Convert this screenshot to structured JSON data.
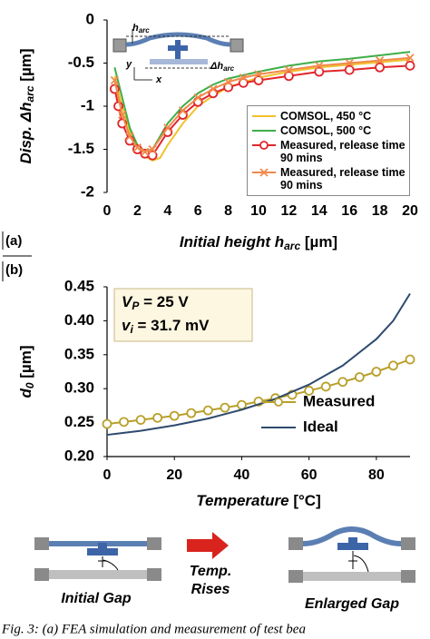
{
  "chart_data": [
    {
      "type": "line",
      "panel_label": "(a)",
      "xlabel": {
        "main": "Initial height h",
        "sub": "arc",
        "unit": " [µm]"
      },
      "ylabel": {
        "main": "Disp. Δh",
        "sub": "arc",
        "unit": " [µm]"
      },
      "xlim": [
        0,
        20
      ],
      "xticks": [
        0,
        2,
        4,
        6,
        8,
        10,
        12,
        14,
        16,
        18,
        20
      ],
      "ylim": [
        -2,
        0
      ],
      "yticks": [
        0,
        -0.5,
        -1,
        -1.5,
        -2
      ],
      "inset_labels": {
        "h": "h",
        "h_sub": "arc",
        "y": "y",
        "x": "x",
        "dh": "Δh",
        "dh_sub": "arc"
      },
      "series": [
        {
          "name": "COMSOL, 450 °C",
          "color": "#f2c12e",
          "marker": null,
          "x": [
            0.5,
            1,
            1.5,
            2,
            2.5,
            3,
            3.5,
            4,
            5,
            6,
            7,
            8,
            10,
            12,
            14,
            16,
            18,
            20
          ],
          "values": [
            -0.65,
            -1.0,
            -1.3,
            -1.48,
            -1.58,
            -1.63,
            -1.6,
            -1.45,
            -1.2,
            -1.0,
            -0.88,
            -0.78,
            -0.67,
            -0.6,
            -0.55,
            -0.52,
            -0.49,
            -0.46
          ]
        },
        {
          "name": "COMSOL, 500 °C",
          "color": "#3fae49",
          "marker": null,
          "x": [
            0.5,
            1,
            1.5,
            2,
            2.5,
            3,
            4,
            5,
            6,
            7,
            8,
            10,
            12,
            14,
            16,
            18,
            20
          ],
          "values": [
            -0.55,
            -0.9,
            -1.25,
            -1.45,
            -1.52,
            -1.5,
            -1.2,
            -1.0,
            -0.85,
            -0.75,
            -0.68,
            -0.6,
            -0.53,
            -0.48,
            -0.45,
            -0.41,
            -0.37
          ]
        },
        {
          "name": "Measured, release time 90 mins",
          "color": "#e0262b",
          "marker": "circle",
          "x": [
            0.5,
            0.75,
            1,
            1.5,
            2,
            2.5,
            3,
            4,
            5,
            6,
            7,
            8,
            9,
            10,
            12,
            14,
            16,
            18,
            20
          ],
          "values": [
            -0.8,
            -1.0,
            -1.2,
            -1.4,
            -1.5,
            -1.55,
            -1.57,
            -1.3,
            -1.1,
            -0.95,
            -0.85,
            -0.78,
            -0.73,
            -0.7,
            -0.65,
            -0.6,
            -0.58,
            -0.55,
            -0.53
          ]
        },
        {
          "name": "Measured, release time 90 mins",
          "color": "#f08a4b",
          "marker": "x",
          "x": [
            0.5,
            1,
            1.5,
            2,
            2.5,
            3,
            4,
            5,
            6,
            7,
            8,
            9,
            10,
            12,
            14,
            16,
            18,
            20
          ],
          "values": [
            -0.7,
            -1.1,
            -1.35,
            -1.48,
            -1.53,
            -1.5,
            -1.25,
            -1.05,
            -0.9,
            -0.8,
            -0.72,
            -0.67,
            -0.63,
            -0.58,
            -0.53,
            -0.5,
            -0.47,
            -0.44
          ]
        }
      ]
    },
    {
      "type": "line",
      "panel_label": "(b)",
      "xlabel": {
        "main": "Temperature",
        "unit": " [°C]"
      },
      "ylabel": {
        "main": "d",
        "sub": "0",
        "unit": " [µm]"
      },
      "xlim": [
        0,
        90
      ],
      "xticks": [
        0,
        20,
        40,
        60,
        80
      ],
      "ylim": [
        0.2,
        0.45
      ],
      "yticks": [
        {
          "value": 0.2,
          "label": "0.20"
        },
        0.25,
        {
          "value": 0.3,
          "label": "0.30"
        },
        0.35,
        {
          "value": 0.4,
          "label": "0.40"
        },
        0.45
      ],
      "annotations": [
        {
          "main": "V",
          "sub": "P",
          "rest": " = 25 V"
        },
        {
          "main": "v",
          "sub": "i",
          "rest": " = 31.7 mV"
        }
      ],
      "series": [
        {
          "name": "Measured",
          "color": "#b8a02a",
          "marker": "circle",
          "x": [
            0,
            5,
            10,
            15,
            20,
            25,
            30,
            35,
            40,
            45,
            50,
            55,
            60,
            65,
            70,
            75,
            80,
            85,
            90
          ],
          "values": [
            0.248,
            0.251,
            0.254,
            0.257,
            0.26,
            0.264,
            0.268,
            0.272,
            0.276,
            0.281,
            0.286,
            0.291,
            0.297,
            0.303,
            0.31,
            0.317,
            0.325,
            0.334,
            0.343
          ]
        },
        {
          "name": "Ideal",
          "color": "#2e4a6e",
          "marker": null,
          "x": [
            0,
            10,
            20,
            30,
            40,
            50,
            60,
            70,
            80,
            85,
            90
          ],
          "values": [
            0.232,
            0.238,
            0.246,
            0.256,
            0.269,
            0.285,
            0.306,
            0.334,
            0.373,
            0.4,
            0.44
          ]
        }
      ]
    }
  ],
  "diagram": {
    "left": "Initial Gap",
    "middle_1": "Temp.",
    "middle_2": "Rises",
    "right": "Enlarged Gap"
  },
  "caption": "Fig. 3: (a) FEA simulation and measurement of test bea"
}
